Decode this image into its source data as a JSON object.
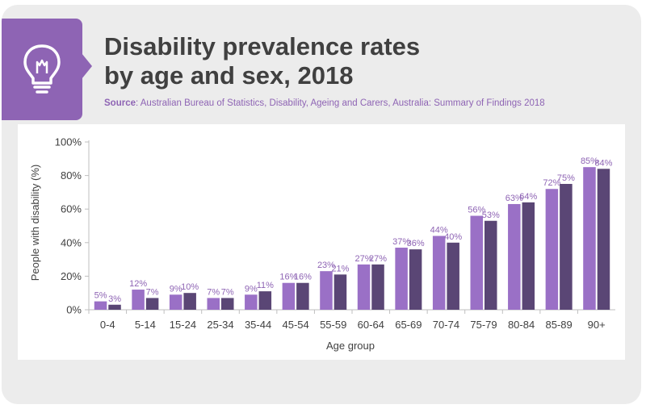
{
  "header": {
    "title_line1": "Disability prevalence rates",
    "title_line2": "by age and sex, 2018",
    "source_label": "Source",
    "source_text": ": Australian Bureau of Statistics, Disability, Ageing and Carers, Australia: Summary of Findings 2018",
    "icon": "lightbulb-icon"
  },
  "colors": {
    "accent": "#8e64b4",
    "series1": "#9a70c6",
    "series2": "#5a4675",
    "label": "#8e64b4",
    "axis_text": "#404040",
    "card_bg": "#ececec"
  },
  "chart_data": {
    "type": "bar",
    "title": "Disability prevalence rates by age and sex, 2018",
    "xlabel": "Age group",
    "ylabel": "People with disability (%)",
    "ylim": [
      0,
      100
    ],
    "yticks": [
      "0%",
      "20%",
      "40%",
      "60%",
      "80%",
      "100%"
    ],
    "yticks_values": [
      0,
      20,
      40,
      60,
      80,
      100
    ],
    "grid": false,
    "legend": "none",
    "categories": [
      "0-4",
      "5-14",
      "15-24",
      "25-34",
      "35-44",
      "45-54",
      "55-59",
      "60-64",
      "65-69",
      "70-74",
      "75-79",
      "80-84",
      "85-89",
      "90+"
    ],
    "series": [
      {
        "values": [
          5,
          12,
          9,
          7,
          9,
          16,
          23,
          27,
          37,
          44,
          56,
          63,
          72,
          85
        ]
      },
      {
        "values": [
          3,
          7,
          10,
          7,
          11,
          16,
          21,
          27,
          36,
          40,
          53,
          64,
          75,
          84
        ]
      }
    ],
    "value_suffix": "%"
  }
}
